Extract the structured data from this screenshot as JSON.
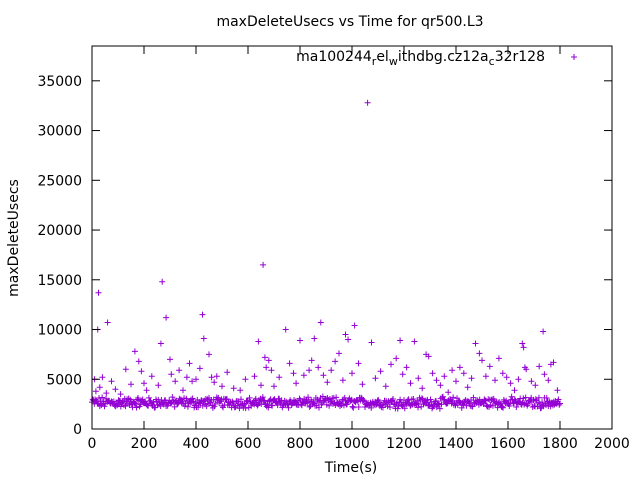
{
  "chart_data": {
    "type": "scatter",
    "title": "maxDeleteUsecs vs Time for qr500.L3",
    "xlabel": "Time(s)",
    "ylabel": "maxDeleteUsecs",
    "xlim": [
      0,
      2000
    ],
    "ylim": [
      0,
      38500
    ],
    "xticks": [
      0,
      200,
      400,
      600,
      800,
      1000,
      1200,
      1400,
      1600,
      1800,
      2000
    ],
    "yticks": [
      0,
      5000,
      10000,
      15000,
      20000,
      25000,
      30000,
      35000
    ],
    "xtick_labels": [
      "0",
      "200",
      "400",
      "600",
      "800",
      "1000",
      "1200",
      "1400",
      "1600",
      "1800",
      "2000"
    ],
    "ytick_labels": [
      "0",
      "5000",
      "10000",
      "15000",
      "20000",
      "25000",
      "30000",
      "35000"
    ],
    "grid": false,
    "legend_position": "top-right",
    "colors": {
      "series": "#9400d3",
      "axis": "#000000"
    },
    "series": [
      {
        "name": "ma100244",
        "name_sub1": "r",
        "name_mid1": "el",
        "name_sub2": "w",
        "name_mid2": "ithdbg.cz12a",
        "name_sub3": "c",
        "name_end": "32r128",
        "marker": "+",
        "band": {
          "x_start": 0,
          "x_end": 1800,
          "x_step": 3,
          "y_low": 1800,
          "y_high": 3500
        },
        "points": [
          [
            10,
            5000
          ],
          [
            15,
            3800
          ],
          [
            22,
            10000
          ],
          [
            25,
            13700
          ],
          [
            30,
            4200
          ],
          [
            40,
            5200
          ],
          [
            55,
            3600
          ],
          [
            60,
            10700
          ],
          [
            75,
            4800
          ],
          [
            90,
            4000
          ],
          [
            110,
            3500
          ],
          [
            130,
            6000
          ],
          [
            150,
            4500
          ],
          [
            165,
            7800
          ],
          [
            180,
            6800
          ],
          [
            190,
            5800
          ],
          [
            200,
            4600
          ],
          [
            210,
            3900
          ],
          [
            230,
            5300
          ],
          [
            255,
            4400
          ],
          [
            265,
            8600
          ],
          [
            270,
            14800
          ],
          [
            285,
            11200
          ],
          [
            300,
            7000
          ],
          [
            305,
            5500
          ],
          [
            320,
            4800
          ],
          [
            335,
            5900
          ],
          [
            350,
            3900
          ],
          [
            365,
            5200
          ],
          [
            375,
            6600
          ],
          [
            385,
            4800
          ],
          [
            400,
            5000
          ],
          [
            415,
            6100
          ],
          [
            425,
            11500
          ],
          [
            430,
            9100
          ],
          [
            450,
            7500
          ],
          [
            460,
            5200
          ],
          [
            470,
            4700
          ],
          [
            480,
            5300
          ],
          [
            500,
            4300
          ],
          [
            520,
            5700
          ],
          [
            545,
            4100
          ],
          [
            570,
            3900
          ],
          [
            590,
            5000
          ],
          [
            625,
            5300
          ],
          [
            640,
            8800
          ],
          [
            650,
            4400
          ],
          [
            658,
            16500
          ],
          [
            665,
            7200
          ],
          [
            670,
            6200
          ],
          [
            680,
            6900
          ],
          [
            690,
            5900
          ],
          [
            700,
            4300
          ],
          [
            720,
            5200
          ],
          [
            745,
            10000
          ],
          [
            760,
            6600
          ],
          [
            775,
            5600
          ],
          [
            785,
            4600
          ],
          [
            800,
            8900
          ],
          [
            815,
            5400
          ],
          [
            835,
            5900
          ],
          [
            845,
            6900
          ],
          [
            855,
            9100
          ],
          [
            870,
            6200
          ],
          [
            880,
            10700
          ],
          [
            890,
            5400
          ],
          [
            905,
            4700
          ],
          [
            920,
            5900
          ],
          [
            935,
            6800
          ],
          [
            950,
            7600
          ],
          [
            965,
            4900
          ],
          [
            975,
            9500
          ],
          [
            985,
            9000
          ],
          [
            1000,
            5600
          ],
          [
            1010,
            10400
          ],
          [
            1025,
            6600
          ],
          [
            1040,
            4500
          ],
          [
            1060,
            32800
          ],
          [
            1075,
            8700
          ],
          [
            1090,
            5100
          ],
          [
            1110,
            5800
          ],
          [
            1130,
            4300
          ],
          [
            1150,
            6500
          ],
          [
            1170,
            7100
          ],
          [
            1185,
            8900
          ],
          [
            1195,
            5500
          ],
          [
            1210,
            6200
          ],
          [
            1225,
            4600
          ],
          [
            1240,
            8800
          ],
          [
            1255,
            5100
          ],
          [
            1270,
            4100
          ],
          [
            1285,
            7500
          ],
          [
            1295,
            7300
          ],
          [
            1310,
            5600
          ],
          [
            1325,
            4900
          ],
          [
            1340,
            4400
          ],
          [
            1355,
            5300
          ],
          [
            1370,
            3700
          ],
          [
            1385,
            5900
          ],
          [
            1400,
            4800
          ],
          [
            1415,
            6200
          ],
          [
            1430,
            5600
          ],
          [
            1445,
            4200
          ],
          [
            1460,
            5100
          ],
          [
            1475,
            8600
          ],
          [
            1490,
            7600
          ],
          [
            1500,
            6900
          ],
          [
            1515,
            5300
          ],
          [
            1530,
            6300
          ],
          [
            1550,
            4900
          ],
          [
            1565,
            7100
          ],
          [
            1580,
            5600
          ],
          [
            1595,
            5200
          ],
          [
            1610,
            4600
          ],
          [
            1625,
            3900
          ],
          [
            1640,
            5000
          ],
          [
            1655,
            8600
          ],
          [
            1660,
            8200
          ],
          [
            1665,
            6200
          ],
          [
            1670,
            6000
          ],
          [
            1690,
            4800
          ],
          [
            1705,
            4400
          ],
          [
            1720,
            6300
          ],
          [
            1735,
            9800
          ],
          [
            1740,
            5500
          ],
          [
            1755,
            4900
          ],
          [
            1765,
            6500
          ],
          [
            1775,
            6700
          ],
          [
            1790,
            3900
          ]
        ]
      }
    ]
  }
}
